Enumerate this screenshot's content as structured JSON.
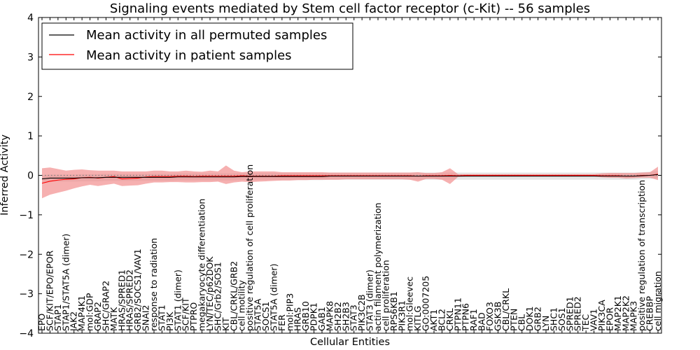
{
  "chart_data": {
    "type": "line",
    "title": "Signaling events mediated by Stem cell factor receptor (c-Kit) -- 56 samples",
    "xlabel": "Cellular Entities",
    "ylabel": "Inferred Activity",
    "ylim": [
      -4,
      4
    ],
    "yticks": [
      -4,
      -3,
      -2,
      -1,
      0,
      1,
      2,
      3,
      4
    ],
    "ytick_labels": [
      "−4",
      "−3",
      "−2",
      "−1",
      "0",
      "1",
      "2",
      "3",
      "4"
    ],
    "legend_placement": "top-left",
    "categories": [
      "EPO",
      "SCF/KIT/EPO/EPOR",
      "STAP1",
      "STAP1/STAT5A (dimer)",
      "JAK2",
      "MAP4K1",
      "mol:GDP",
      "GRAP2",
      "SHC/GRAP2",
      "MATK",
      "HRAS/SPRED1",
      "HRAS/SPRED2",
      "GRB2/SOCS1/VAV1",
      "SNAI2",
      "response to radiation",
      "STAT1",
      "PI3K",
      "STAT1 (dimer)",
      "SCF/KIT",
      "PTPRO",
      "megakaryocyte differentiation",
      "LYN/TEC/p62DOK",
      "SHC/Grb2/SOS1",
      "KIT",
      "CBL/CRKL/GRB2",
      "cell motility",
      "positive regulation of cell proliferation",
      "STAT5A",
      "SOCS1",
      "STAT5A (dimer)",
      "FER",
      "mol:PIP3",
      "HRAS",
      "GRB10",
      "PDPK1",
      "GAB1",
      "MAPK8",
      "SH2B2",
      "SH2B3",
      "STAT3",
      "PIK3C2B",
      "STAT3 (dimer)",
      "actin filament polymerization",
      "cell proliferation",
      "RPS6KB1",
      "PIK3R1",
      "mol:Gleevec",
      "KITLG",
      "GO:0007205",
      "AKT1",
      "BCL2",
      "CRKL",
      "PTPN11",
      "PTPN6",
      "RAF1",
      "BAD",
      "FOXO3",
      "GSK3B",
      "CBL/CRKL",
      "PTEN",
      "CBL",
      "DOK1",
      "GRB2",
      "LYN",
      "SHC1",
      "SOS1",
      "SPRED1",
      "SPRED2",
      "TEC",
      "VAV1",
      "PIK3CA",
      "EPOR",
      "MAP2K1",
      "MAP2K2",
      "MAPK3",
      "positive regulation of transcription",
      "CREBBP",
      "cell migration"
    ],
    "series": [
      {
        "name": "Mean activity in all permuted samples",
        "color": "#000000",
        "values": [
          -0.09,
          -0.07,
          -0.07,
          -0.07,
          -0.07,
          -0.06,
          -0.06,
          -0.06,
          -0.05,
          -0.05,
          -0.05,
          -0.05,
          -0.05,
          -0.05,
          -0.05,
          -0.05,
          -0.05,
          -0.04,
          -0.04,
          -0.04,
          -0.04,
          -0.04,
          -0.04,
          -0.04,
          -0.04,
          -0.03,
          -0.03,
          -0.03,
          -0.03,
          -0.03,
          -0.03,
          -0.03,
          -0.03,
          -0.03,
          -0.03,
          -0.03,
          -0.02,
          -0.02,
          -0.02,
          -0.02,
          -0.02,
          -0.02,
          -0.02,
          -0.02,
          -0.02,
          -0.02,
          -0.02,
          -0.02,
          -0.02,
          -0.02,
          -0.02,
          -0.02,
          -0.02,
          -0.02,
          -0.02,
          -0.02,
          -0.02,
          -0.02,
          -0.02,
          -0.02,
          -0.02,
          -0.02,
          -0.02,
          -0.02,
          -0.02,
          -0.02,
          -0.02,
          -0.02,
          -0.02,
          -0.02,
          -0.02,
          -0.02,
          -0.02,
          -0.02,
          -0.02,
          -0.01,
          0.0,
          0.02
        ],
        "band_low": [
          -0.18,
          -0.16,
          -0.16,
          -0.16,
          -0.16,
          -0.15,
          -0.15,
          -0.15,
          -0.14,
          -0.14,
          -0.14,
          -0.14,
          -0.14,
          -0.14,
          -0.14,
          -0.14,
          -0.14,
          -0.13,
          -0.13,
          -0.13,
          -0.13,
          -0.13,
          -0.13,
          -0.13,
          -0.13,
          -0.12,
          -0.12,
          -0.12,
          -0.12,
          -0.12,
          -0.12,
          -0.12,
          -0.12,
          -0.12,
          -0.12,
          -0.12,
          -0.11,
          -0.11,
          -0.11,
          -0.11,
          -0.11,
          -0.11,
          -0.11,
          -0.11,
          -0.11,
          -0.11,
          -0.11,
          -0.11,
          -0.11,
          -0.11,
          -0.11,
          -0.11,
          -0.11,
          -0.11,
          -0.11,
          -0.11,
          -0.11,
          -0.11,
          -0.11,
          -0.11,
          -0.11,
          -0.11,
          -0.11,
          -0.11,
          -0.11,
          -0.11,
          -0.11,
          -0.11,
          -0.11,
          -0.11,
          -0.11,
          -0.11,
          -0.11,
          -0.11,
          -0.11,
          -0.1,
          -0.09,
          -0.07
        ],
        "band_high": [
          0.0,
          0.02,
          0.02,
          0.02,
          0.02,
          0.03,
          0.03,
          0.03,
          0.04,
          0.04,
          0.04,
          0.04,
          0.04,
          0.04,
          0.04,
          0.04,
          0.04,
          0.05,
          0.05,
          0.05,
          0.05,
          0.05,
          0.05,
          0.05,
          0.05,
          0.06,
          0.06,
          0.06,
          0.06,
          0.06,
          0.06,
          0.06,
          0.06,
          0.06,
          0.06,
          0.06,
          0.07,
          0.07,
          0.07,
          0.07,
          0.07,
          0.07,
          0.07,
          0.07,
          0.07,
          0.07,
          0.07,
          0.07,
          0.07,
          0.07,
          0.07,
          0.07,
          0.07,
          0.07,
          0.07,
          0.07,
          0.07,
          0.07,
          0.07,
          0.07,
          0.07,
          0.07,
          0.07,
          0.07,
          0.07,
          0.07,
          0.07,
          0.07,
          0.07,
          0.07,
          0.07,
          0.07,
          0.07,
          0.07,
          0.07,
          0.08,
          0.09,
          0.11
        ]
      },
      {
        "name": "Mean activity in patient samples",
        "color": "#ff0000",
        "band_color": "#f08080",
        "values": [
          -0.2,
          -0.15,
          -0.12,
          -0.1,
          -0.09,
          -0.06,
          -0.05,
          -0.07,
          -0.05,
          -0.03,
          -0.09,
          -0.08,
          -0.07,
          -0.04,
          -0.03,
          -0.03,
          -0.03,
          -0.02,
          -0.02,
          -0.03,
          -0.02,
          -0.02,
          -0.02,
          -0.02,
          -0.02,
          -0.01,
          -0.02,
          -0.02,
          -0.02,
          -0.02,
          -0.01,
          -0.01,
          -0.01,
          -0.01,
          -0.01,
          -0.01,
          -0.01,
          -0.01,
          -0.01,
          -0.01,
          -0.01,
          -0.01,
          -0.01,
          -0.01,
          -0.01,
          -0.01,
          -0.01,
          -0.02,
          -0.01,
          -0.01,
          -0.01,
          0.0,
          -0.01,
          0.0,
          0.0,
          0.0,
          0.0,
          0.0,
          0.0,
          0.0,
          0.0,
          0.0,
          0.0,
          0.0,
          0.0,
          0.0,
          0.0,
          0.0,
          0.0,
          0.0,
          -0.01,
          -0.01,
          -0.01,
          -0.02,
          -0.02,
          0.0,
          0.0,
          0.03
        ],
        "band_low": [
          -0.58,
          -0.49,
          -0.44,
          -0.39,
          -0.33,
          -0.28,
          -0.24,
          -0.27,
          -0.24,
          -0.21,
          -0.27,
          -0.26,
          -0.25,
          -0.21,
          -0.18,
          -0.18,
          -0.17,
          -0.17,
          -0.18,
          -0.18,
          -0.17,
          -0.17,
          -0.16,
          -0.22,
          -0.18,
          -0.16,
          -0.17,
          -0.16,
          -0.15,
          -0.14,
          -0.13,
          -0.13,
          -0.12,
          -0.12,
          -0.11,
          -0.11,
          -0.11,
          -0.11,
          -0.1,
          -0.1,
          -0.1,
          -0.1,
          -0.1,
          -0.1,
          -0.1,
          -0.1,
          -0.11,
          -0.16,
          -0.09,
          -0.09,
          -0.11,
          -0.22,
          -0.04,
          -0.03,
          -0.03,
          -0.03,
          -0.03,
          -0.03,
          -0.03,
          -0.03,
          -0.03,
          -0.03,
          -0.03,
          -0.03,
          -0.03,
          -0.03,
          -0.03,
          -0.03,
          -0.03,
          -0.03,
          -0.05,
          -0.06,
          -0.06,
          -0.08,
          -0.07,
          -0.06,
          -0.06,
          -0.12
        ],
        "band_high": [
          0.18,
          0.2,
          0.16,
          0.12,
          0.14,
          0.15,
          0.13,
          0.12,
          0.12,
          0.12,
          0.1,
          0.1,
          0.1,
          0.1,
          0.12,
          0.12,
          0.1,
          0.1,
          0.12,
          0.1,
          0.09,
          0.12,
          0.1,
          0.25,
          0.12,
          0.08,
          0.1,
          0.1,
          0.1,
          0.1,
          0.08,
          0.08,
          0.08,
          0.08,
          0.08,
          0.08,
          0.07,
          0.07,
          0.07,
          0.07,
          0.07,
          0.07,
          0.07,
          0.07,
          0.07,
          0.07,
          0.07,
          0.08,
          0.06,
          0.06,
          0.08,
          0.18,
          0.03,
          0.03,
          0.03,
          0.03,
          0.03,
          0.03,
          0.03,
          0.03,
          0.03,
          0.03,
          0.03,
          0.03,
          0.03,
          0.03,
          0.03,
          0.03,
          0.03,
          0.03,
          0.05,
          0.06,
          0.06,
          0.06,
          0.06,
          0.07,
          0.08,
          0.22
        ]
      }
    ],
    "reference_line": {
      "y": 0,
      "style": "dotted",
      "color": "#808080"
    }
  }
}
